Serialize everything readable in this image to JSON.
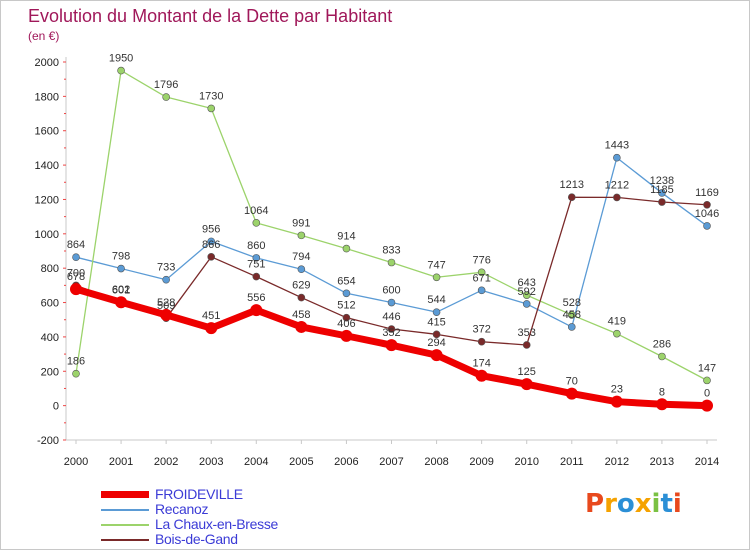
{
  "title": "Evolution du Montant de la Dette par Habitant",
  "unit_label": "(en €)",
  "logo": {
    "text": "Proxiti",
    "colors": [
      "#e8491d",
      "#f5a200",
      "#2b8fd6",
      "#f5a200",
      "#7ac143",
      "#2b8fd6",
      "#e8491d"
    ]
  },
  "chart_data": {
    "type": "line",
    "title": "Evolution du Montant de la Dette par Habitant",
    "ylabel": "(en €)",
    "xlabel": "",
    "ylim": [
      -200,
      2000
    ],
    "yticks": [
      -200,
      0,
      200,
      400,
      600,
      800,
      1000,
      1200,
      1400,
      1600,
      1800,
      2000
    ],
    "grid": false,
    "legend_position": "bottom-left",
    "x": [
      "2000",
      "2001",
      "2002",
      "2003",
      "2004",
      "2005",
      "2006",
      "2007",
      "2008",
      "2009",
      "2010",
      "2011",
      "2012",
      "2013",
      "2014"
    ],
    "series": [
      {
        "name": "FROIDEVILLE",
        "color": "#ee0000",
        "values": [
          678,
          602,
          528,
          451,
          556,
          458,
          406,
          352,
          294,
          174,
          125,
          70,
          23,
          8,
          0
        ]
      },
      {
        "name": "Recanoz",
        "color": "#5b9bd5",
        "values": [
          864,
          798,
          733,
          956,
          860,
          794,
          654,
          600,
          544,
          671,
          592,
          458,
          1443,
          1238,
          1046
        ]
      },
      {
        "name": "La Chaux-en-Bresse",
        "color": "#9cd36b",
        "values": [
          186,
          1950,
          1796,
          1730,
          1064,
          991,
          914,
          833,
          747,
          776,
          643,
          528,
          419,
          286,
          147
        ]
      },
      {
        "name": "Bois-de-Gand",
        "color": "#7a2a2a",
        "values": [
          700,
          601,
          509,
          866,
          751,
          629,
          512,
          446,
          415,
          372,
          353,
          1213,
          1212,
          1185,
          1169
        ]
      }
    ]
  }
}
